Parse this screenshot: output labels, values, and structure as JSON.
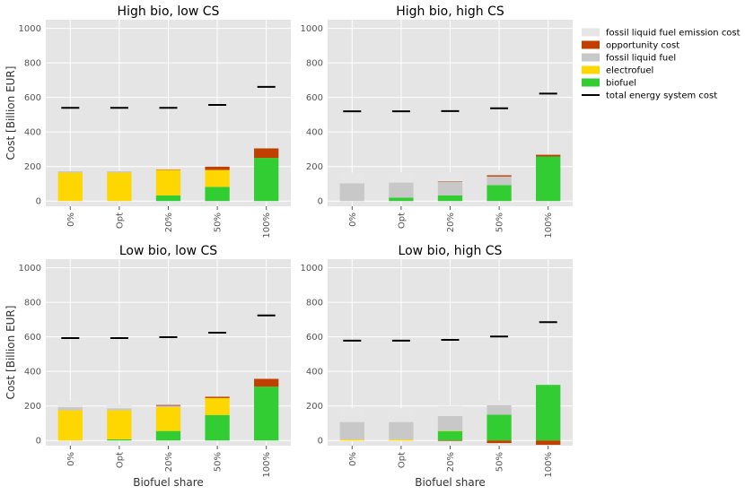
{
  "chart_data": {
    "type": "bar",
    "stacked": true,
    "categories": [
      "0%",
      "Opt",
      "20%",
      "50%",
      "100%"
    ],
    "xlabel": "Biofuel share",
    "ylabel": "Cost [Billion EUR]",
    "ylim": [
      -30,
      1050
    ],
    "yticks": [
      0,
      200,
      400,
      600,
      800,
      1000
    ],
    "legend_position": "right",
    "legend": [
      {
        "key": "fossil_emission",
        "label": "fossil liquid fuel emission cost",
        "color": "#e6e6e6"
      },
      {
        "key": "opportunity",
        "label": "opportunity cost",
        "color": "#c04000"
      },
      {
        "key": "fossil",
        "label": "fossil liquid fuel",
        "color": "#c8c8c8"
      },
      {
        "key": "electrofuel",
        "label": "electrofuel",
        "color": "#ffd700"
      },
      {
        "key": "biofuel",
        "label": "biofuel",
        "color": "#32cd32"
      },
      {
        "key": "total",
        "label": "total energy system cost",
        "color": "#000000"
      }
    ],
    "stack_order": [
      "biofuel",
      "electrofuel",
      "fossil",
      "opportunity",
      "fossil_emission"
    ],
    "panels": [
      {
        "title": "High bio, low CS",
        "series": {
          "biofuel": [
            0,
            0,
            33,
            82,
            250
          ],
          "electrofuel": [
            165,
            165,
            148,
            98,
            0
          ],
          "fossil": [
            8,
            8,
            0,
            0,
            0
          ],
          "opportunity": [
            0,
            0,
            3,
            20,
            55
          ],
          "fossil_emission": [
            2,
            2,
            2,
            2,
            0
          ]
        },
        "total": [
          540,
          540,
          540,
          557,
          661
        ]
      },
      {
        "title": "High bio, high CS",
        "series": {
          "biofuel": [
            0,
            20,
            33,
            92,
            258
          ],
          "electrofuel": [
            0,
            0,
            0,
            0,
            0
          ],
          "fossil": [
            103,
            87,
            80,
            50,
            0
          ],
          "opportunity": [
            0,
            0,
            2,
            8,
            10
          ],
          "fossil_emission": [
            62,
            60,
            52,
            28,
            0
          ]
        },
        "total": [
          520,
          520,
          521,
          537,
          622
        ]
      },
      {
        "title": "Low bio, low CS",
        "series": {
          "biofuel": [
            0,
            7,
            55,
            148,
            312
          ],
          "electrofuel": [
            175,
            168,
            138,
            98,
            0
          ],
          "fossil": [
            18,
            12,
            8,
            0,
            0
          ],
          "opportunity": [
            0,
            0,
            5,
            8,
            45
          ],
          "fossil_emission": [
            37,
            23,
            12,
            3,
            0
          ]
        },
        "total": [
          593,
          593,
          598,
          624,
          724
        ]
      },
      {
        "title": "Low bio, high CS",
        "series": {
          "biofuel": [
            0,
            0,
            55,
            150,
            322
          ],
          "electrofuel": [
            7,
            7,
            2,
            0,
            0
          ],
          "fossil": [
            100,
            100,
            85,
            55,
            0
          ],
          "opportunity": [
            0,
            0,
            -3,
            -15,
            -25
          ],
          "fossil_emission": [
            80,
            80,
            58,
            28,
            0
          ]
        },
        "total": [
          578,
          578,
          583,
          602,
          685
        ]
      }
    ]
  }
}
